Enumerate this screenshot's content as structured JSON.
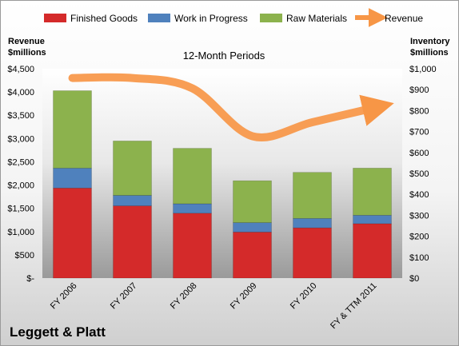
{
  "chart_data": {
    "type": "bar",
    "subtitle": "12-Month Periods",
    "company": "Leggett & Platt",
    "categories": [
      "FY 2006",
      "FY 2007",
      "FY 2008",
      "FY 2009",
      "FY 2010",
      "FY & TTM 2011"
    ],
    "left_axis": {
      "title_line1": "Revenue",
      "title_line2": "$millions",
      "ylim": [
        0,
        4500
      ],
      "ticks": [
        "$-",
        "$500",
        "$1,000",
        "$1,500",
        "$2,000",
        "$2,500",
        "$3,000",
        "$3,500",
        "$4,000",
        "$4,500"
      ]
    },
    "right_axis": {
      "title_line1": "Inventory",
      "title_line2": "$millions",
      "ylim": [
        0,
        1000
      ],
      "ticks": [
        "$0",
        "$100",
        "$200",
        "$300",
        "$400",
        "$500",
        "$600",
        "$700",
        "$800",
        "$900",
        "$1,000"
      ]
    },
    "series": [
      {
        "name": "Finished Goods",
        "axis": "right",
        "kind": "bar",
        "color": "#d42a2a",
        "values": [
          430,
          345,
          310,
          220,
          240,
          260
        ]
      },
      {
        "name": "Work in Progress",
        "axis": "right",
        "kind": "bar",
        "color": "#4f81bd",
        "values": [
          95,
          50,
          45,
          45,
          45,
          40
        ]
      },
      {
        "name": "Raw Materials",
        "axis": "right",
        "kind": "bar",
        "color": "#8cb24d",
        "values": [
          370,
          260,
          265,
          200,
          220,
          225
        ]
      },
      {
        "name": "Revenue",
        "axis": "left",
        "kind": "line",
        "color": "#f79646",
        "values": [
          4300,
          4300,
          4080,
          3050,
          3350,
          3650
        ]
      }
    ],
    "grid": false,
    "legend": "top"
  }
}
